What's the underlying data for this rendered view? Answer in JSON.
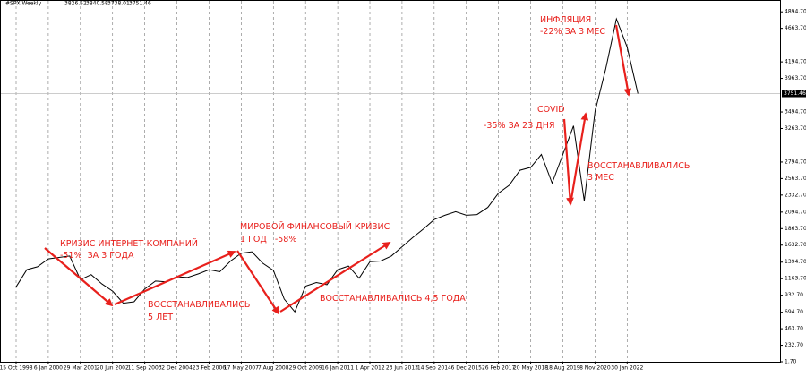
{
  "chart_data": {
    "type": "line",
    "symbol": "#SPX,Weekly",
    "ohlc": [
      3826.52,
      3840.58,
      3738.01,
      3751.46
    ],
    "categories": [
      "15 Oct 1998",
      null,
      null,
      "6 Jan 2000",
      null,
      null,
      "29 Mar 2001",
      null,
      null,
      "20 Jun 2002",
      null,
      null,
      "11 Sep 2003",
      null,
      null,
      "2 Dec 2004",
      null,
      null,
      "23 Feb 2006",
      null,
      null,
      "17 May 2007",
      null,
      null,
      "7 Aug 2008",
      null,
      null,
      "29 Oct 2009",
      null,
      null,
      "16 Jan 2011",
      null,
      null,
      "1 Apr 2012",
      null,
      null,
      "23 Jun 2013",
      null,
      null,
      "14 Sep 2014",
      null,
      null,
      "6 Dec 2015",
      null,
      null,
      "26 Feb 2017",
      null,
      null,
      "20 May 2018",
      null,
      null,
      "18 Aug 2019",
      null,
      null,
      "8 Nov 2020",
      null,
      null,
      "30 Jan 2022",
      null
    ],
    "values": [
      1050,
      1290,
      1330,
      1440,
      1460,
      1480,
      1150,
      1220,
      1090,
      990,
      820,
      840,
      1020,
      1130,
      1120,
      1190,
      1180,
      1230,
      1290,
      1260,
      1410,
      1520,
      1540,
      1380,
      1280,
      880,
      700,
      1060,
      1110,
      1080,
      1290,
      1340,
      1170,
      1400,
      1410,
      1480,
      1610,
      1740,
      1860,
      1990,
      2050,
      2100,
      2050,
      2060,
      2160,
      2360,
      2470,
      2680,
      2720,
      2900,
      2500,
      2900,
      3300,
      2250,
      3500,
      4100,
      4796,
      4400,
      3751.46
    ],
    "color": "#000000",
    "last_price": 3751.46,
    "ylim": [
      1.7,
      4960
    ],
    "yticks": [
      {
        "value": 4894.7,
        "label": "4894.70"
      },
      {
        "value": 4663.7,
        "label": "4663.70"
      },
      {
        "value": 4194.7,
        "label": "4194.70"
      },
      {
        "value": 3963.7,
        "label": "3963.70"
      },
      {
        "value": 3494.7,
        "label": "3494.70"
      },
      {
        "value": 3263.7,
        "label": "3263.70"
      },
      {
        "value": 2794.7,
        "label": "2794.70"
      },
      {
        "value": 2563.7,
        "label": "2563.70"
      },
      {
        "value": 2332.7,
        "label": "2332.70"
      },
      {
        "value": 2094.7,
        "label": "2094.70"
      },
      {
        "value": 1863.7,
        "label": "1863.70"
      },
      {
        "value": 1632.7,
        "label": "1632.70"
      },
      {
        "value": 1394.7,
        "label": "1394.70"
      },
      {
        "value": 1163.7,
        "label": "1163.70"
      },
      {
        "value": 932.7,
        "label": "932.70"
      },
      {
        "value": 694.7,
        "label": "694.70"
      },
      {
        "value": 463.7,
        "label": "463.70"
      },
      {
        "value": 232.7,
        "label": "232.70"
      },
      {
        "value": 1.7,
        "label": "1.70"
      }
    ],
    "grid": true,
    "annotations": [
      "ИНФЛЯЦИЯ",
      "-22% ЗА 3 МЕС",
      "COVID",
      "-35% ЗА 23 ДНЯ",
      "ВОССТАНАВЛИВАЛИСЬ",
      "3 МЕС",
      "МИРОВОЙ ФИНАНСОВЫЙ КРИЗИС",
      "1 ГОД   -58%",
      "КРИЗИС ИНТЕРНЕТ-КОМПАНИЙ",
      "-51%  ЗА 3 ГОДА",
      "ВОССТАНАВЛИВАЛИСЬ",
      "5 ЛЕТ",
      "ВОССТАНАВЛИВАЛИСЬ 4,5 ГОДА"
    ]
  }
}
